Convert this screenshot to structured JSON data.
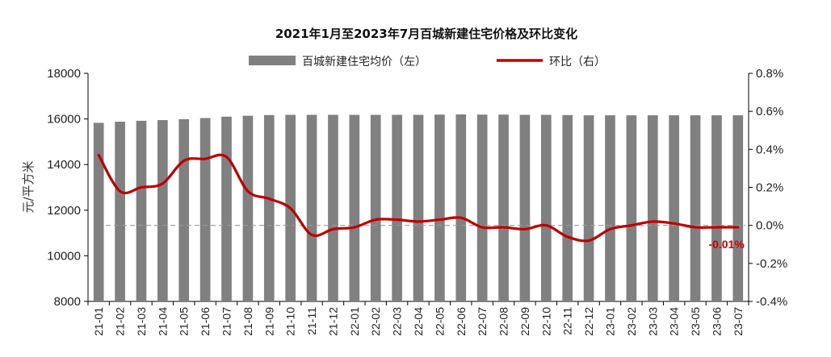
{
  "chart_data": {
    "type": "bar",
    "title": "2021年1月至2023年7月百城新建住宅价格及环比变化",
    "categories": [
      "21-01",
      "21-02",
      "21-03",
      "21-04",
      "21-05",
      "21-06",
      "21-07",
      "21-08",
      "21-09",
      "21-10",
      "21-11",
      "21-12",
      "22-01",
      "22-02",
      "22-03",
      "22-04",
      "22-05",
      "22-06",
      "22-07",
      "22-08",
      "22-09",
      "22-10",
      "22-11",
      "22-12",
      "23-01",
      "23-02",
      "23-03",
      "23-04",
      "23-05",
      "23-06",
      "23-07"
    ],
    "series": [
      {
        "name": "百城新建住宅均价（左）",
        "type": "bar",
        "axis": "left",
        "color": "#808080",
        "values": [
          15830,
          15880,
          15920,
          15950,
          15990,
          16040,
          16100,
          16140,
          16170,
          16180,
          16180,
          16180,
          16180,
          16180,
          16180,
          16180,
          16190,
          16200,
          16190,
          16190,
          16180,
          16180,
          16170,
          16160,
          16160,
          16160,
          16160,
          16160,
          16160,
          16160,
          16160
        ]
      },
      {
        "name": "环比（右）",
        "type": "line",
        "axis": "right",
        "color": "#c00000",
        "values": [
          0.37,
          0.18,
          0.2,
          0.22,
          0.34,
          0.35,
          0.36,
          0.18,
          0.14,
          0.09,
          -0.05,
          -0.02,
          -0.01,
          0.03,
          0.03,
          0.02,
          0.03,
          0.04,
          -0.01,
          -0.01,
          -0.02,
          0.0,
          -0.06,
          -0.08,
          -0.02,
          0.0,
          0.02,
          0.01,
          -0.01,
          -0.01,
          -0.01
        ]
      }
    ],
    "ylabel": "元/平方米",
    "ylim": [
      8000,
      18000
    ],
    "yticks": [
      "8000",
      "10000",
      "12000",
      "14000",
      "16000",
      "18000"
    ],
    "y2lim": [
      -0.4,
      0.8
    ],
    "y2ticks": [
      "-0.4%",
      "-0.2%",
      "0.0%",
      "0.2%",
      "0.4%",
      "0.6%",
      "0.8%"
    ],
    "reference_line": 0,
    "annotation": "-0.01%",
    "legend_position": "top",
    "grid": false
  }
}
